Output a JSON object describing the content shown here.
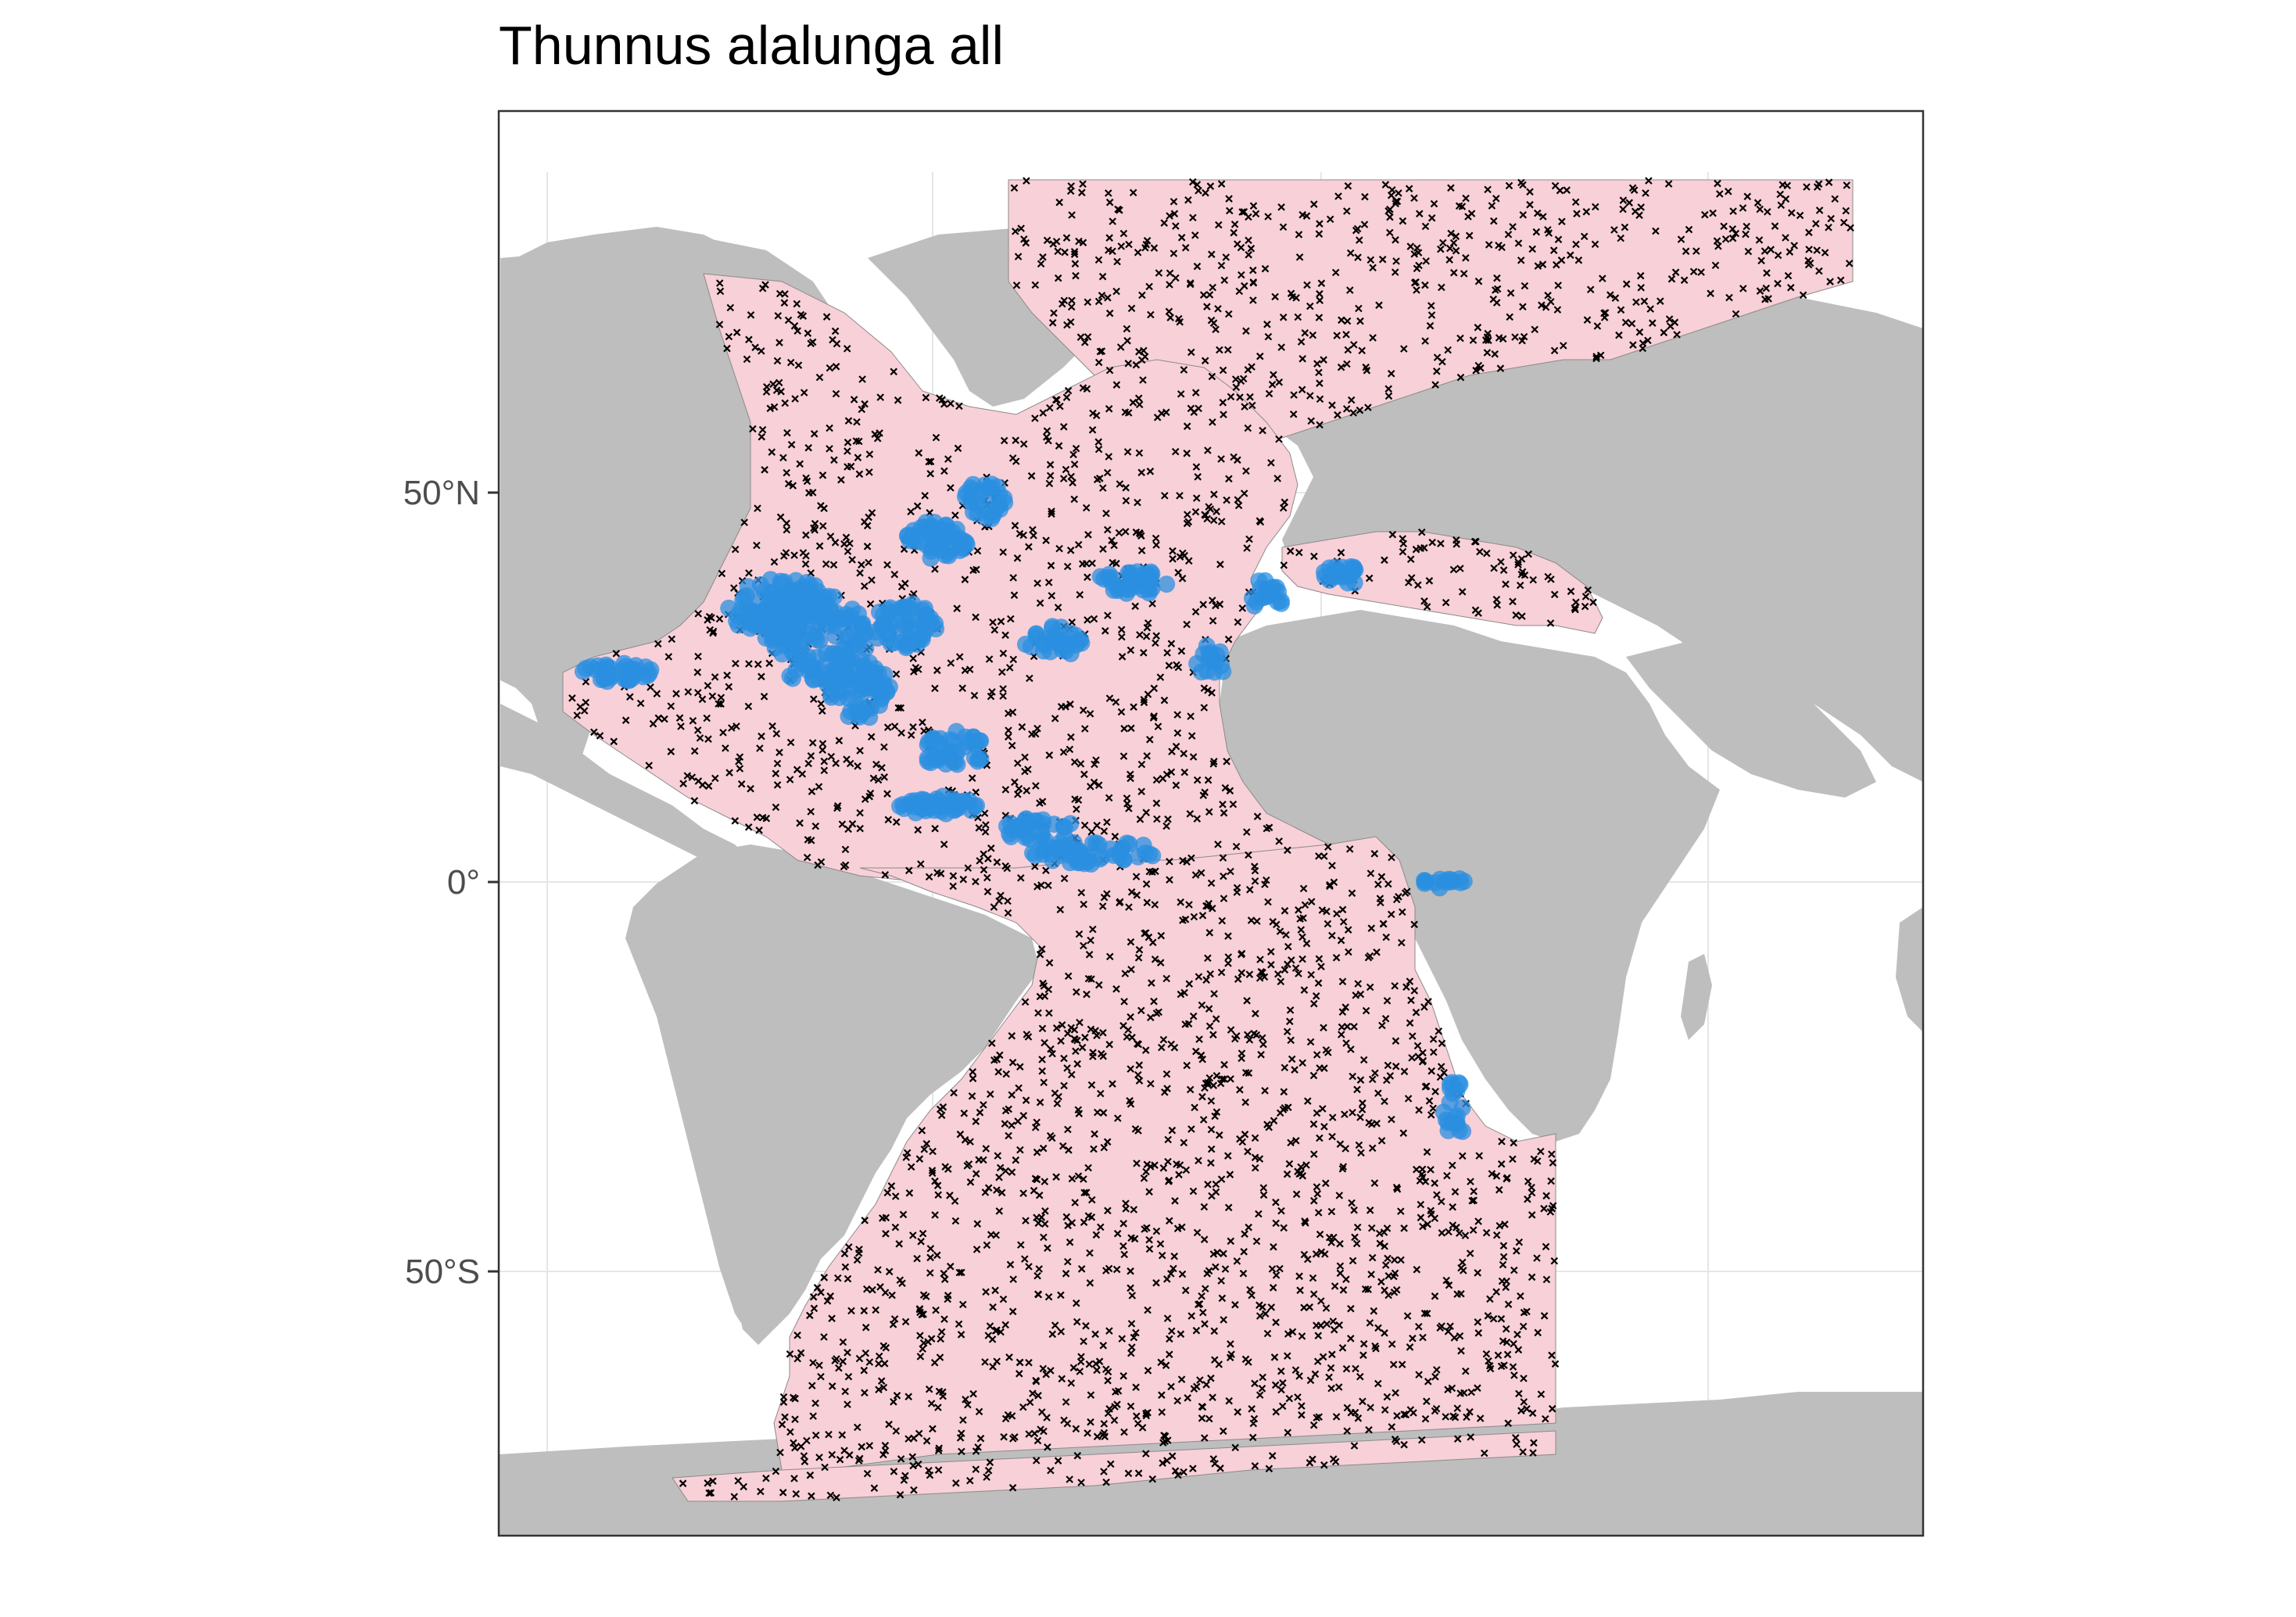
{
  "title": "Thunnus alalunga all",
  "axes": {
    "y_ticks": [
      {
        "label": "50°N",
        "lat": 50
      },
      {
        "label": "0°",
        "lat": 0
      },
      {
        "label": "50°S",
        "lat": -50
      }
    ],
    "x_gridlines_lon": [
      -180,
      -90,
      0,
      90,
      180
    ],
    "grid": true
  },
  "colors": {
    "land": "#bebebe",
    "background_region": "#f8d0d8",
    "background_points": "#000000",
    "presence_points": "#2b8fe0",
    "panel_border": "#333333",
    "gridline": "#e6e6e6"
  },
  "legend": {
    "region": "pink polygon = background sampling area (Atlantic, Mediterranean, Arctic)",
    "background_marker": "x",
    "presence_marker": "circle"
  }
}
